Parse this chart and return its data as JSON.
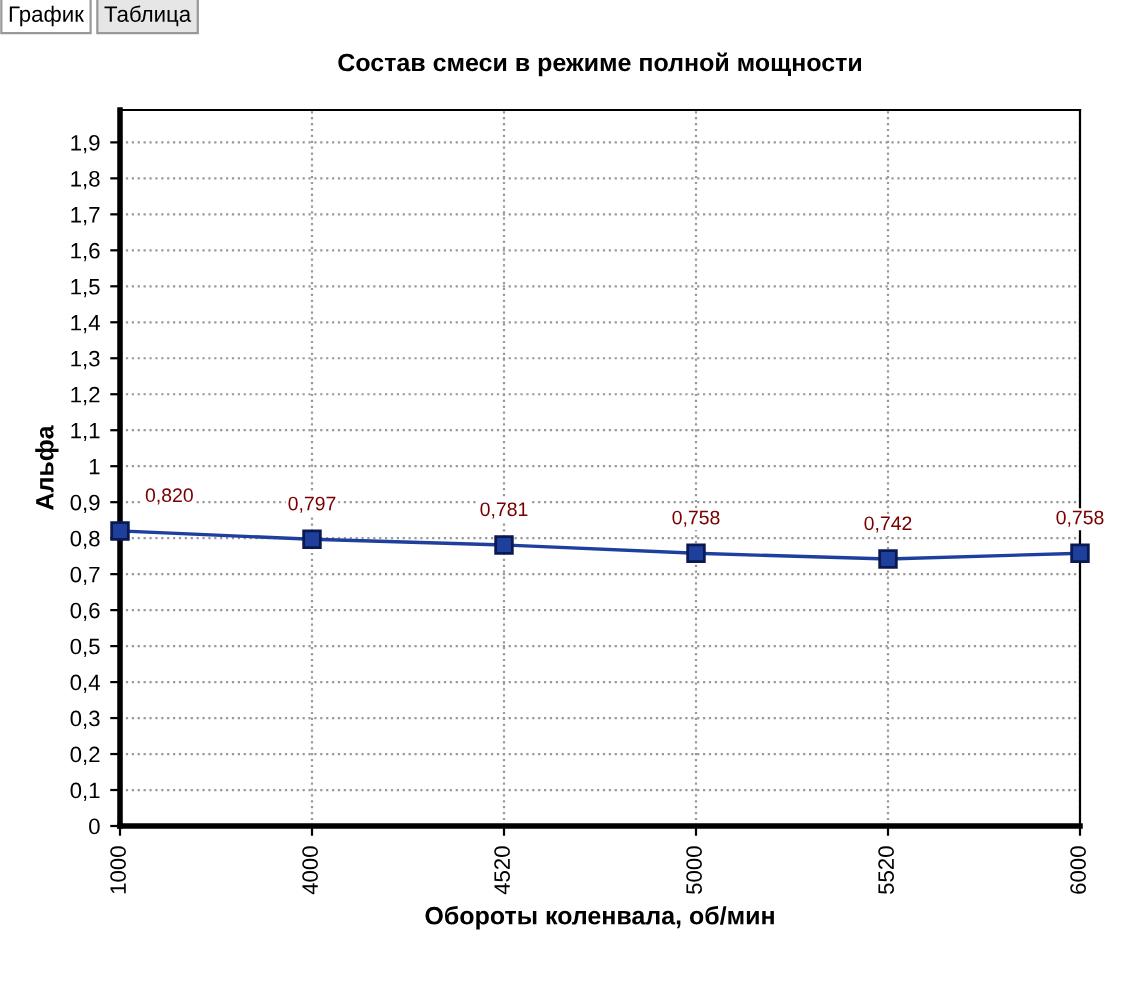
{
  "chart_data": {
    "type": "line",
    "title": "Состав смеси в режиме полной мощности",
    "xlabel": "Обороты коленвала, об/мин",
    "ylabel": "Альфа",
    "categories": [
      "1000",
      "4000",
      "4520",
      "5000",
      "5520",
      "6000"
    ],
    "series": [
      {
        "color": "#1f3f9f",
        "values": [
          0.82,
          0.797,
          0.781,
          0.758,
          0.742,
          0.758
        ],
        "value_labels": [
          "0,820",
          "0,797",
          "0,781",
          "0,758",
          "0,742",
          "0,758"
        ]
      }
    ],
    "ylim": [
      0,
      1.99
    ],
    "yticks": [
      0,
      {
        "value": 0.1,
        "label": "0,1"
      },
      {
        "value": 0.2,
        "label": "0,2"
      },
      {
        "value": 0.3,
        "label": "0,3"
      },
      {
        "value": 0.4,
        "label": "0,4"
      },
      {
        "value": 0.5,
        "label": "0,5"
      },
      {
        "value": 0.6,
        "label": "0,6"
      },
      {
        "value": 0.7,
        "label": "0,7"
      },
      {
        "value": 0.8,
        "label": "0,8"
      },
      {
        "value": 0.9,
        "label": "0,9"
      },
      1,
      {
        "value": 1.1,
        "label": "1,1"
      },
      {
        "value": 1.2,
        "label": "1,2"
      },
      {
        "value": 1.3,
        "label": "1,3"
      },
      {
        "value": 1.4,
        "label": "1,4"
      },
      {
        "value": 1.5,
        "label": "1,5"
      },
      {
        "value": 1.6,
        "label": "1,6"
      },
      {
        "value": 1.7,
        "label": "1,7"
      },
      {
        "value": 1.8,
        "label": "1,8"
      },
      {
        "value": 1.9,
        "label": "1,9"
      }
    ],
    "grid": true,
    "marker": "square",
    "line_style": "solid",
    "annotations": [
      "График",
      "Таблица"
    ]
  }
}
